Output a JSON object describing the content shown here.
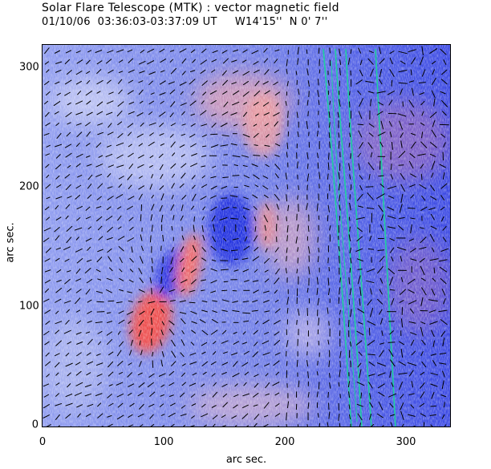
{
  "header": {
    "title": "Solar Flare Telescope (MTK) : vector magnetic field",
    "subtitle": "01/10/06  03:36:03-03:37:09 UT     W14'15''  N 0' 7''"
  },
  "colors": {
    "background_blue": "#6f7fe6",
    "positive_red": "#ee4f4f",
    "negative_blue": "#2430e0",
    "vector_color": "#000000",
    "contour_color": "#1fd0a0"
  },
  "image": {
    "description_semantic": "vector-magnetogram",
    "x_axis_label": "arc sec.",
    "y_axis_label": "arc sec.",
    "x_ticks": [
      "0",
      "100",
      "200",
      "300"
    ],
    "y_ticks": [
      "0",
      "100",
      "200",
      "300"
    ],
    "x_range": [
      0,
      340
    ],
    "y_range": [
      0,
      315
    ]
  }
}
